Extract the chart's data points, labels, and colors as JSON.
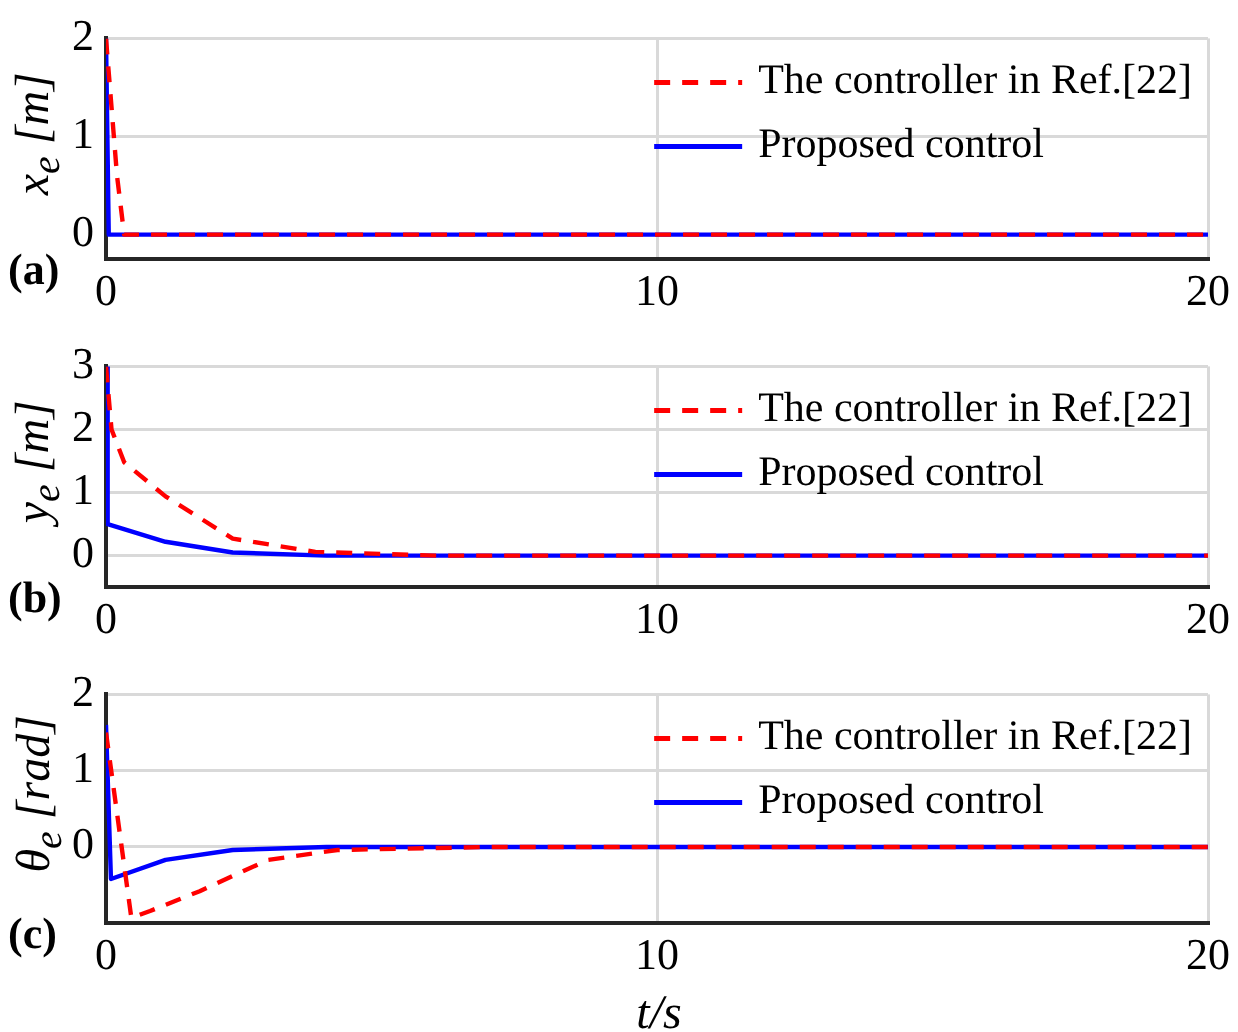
{
  "chart_data": [
    {
      "type": "line",
      "ylabel": "x$_{e}$ [m]",
      "annotations": [
        "(a)"
      ],
      "xlim": [
        0,
        20
      ],
      "xticks": [
        0,
        10,
        20
      ],
      "ylim": [
        -0.25,
        2
      ],
      "yticks": [
        0,
        1,
        2
      ],
      "grid": true,
      "legend": "top right",
      "marker": "none",
      "series": [
        {
          "name": "The controller in Ref.[22]",
          "color": "#ff0000",
          "line_style": "dashed",
          "x": [
            0,
            0.1,
            0.2,
            0.33,
            1,
            20
          ],
          "values": [
            2,
            1.3,
            0.6,
            0,
            0,
            0
          ]
        },
        {
          "name": "Proposed control",
          "color": "#0000ff",
          "line_style": "solid",
          "x": [
            0,
            0.05,
            20
          ],
          "values": [
            2,
            0,
            0
          ]
        }
      ]
    },
    {
      "type": "line",
      "ylabel": "y$_{e}$ [m]",
      "annotations": [
        "(b)"
      ],
      "xlim": [
        0,
        20
      ],
      "xticks": [
        0,
        10,
        20
      ],
      "ylim": [
        -0.5,
        3
      ],
      "yticks": [
        0,
        1,
        2,
        3
      ],
      "grid": true,
      "legend": "top right",
      "marker": "none",
      "series": [
        {
          "name": "The controller in Ref.[22]",
          "color": "#ff0000",
          "line_style": "dashed",
          "x": [
            0,
            0.1,
            0.33,
            1.08,
            2.3,
            3.8,
            6,
            20
          ],
          "values": [
            3,
            2,
            1.48,
            0.94,
            0.27,
            0.06,
            0,
            0
          ]
        },
        {
          "name": "Proposed control",
          "color": "#0000ff",
          "line_style": "solid",
          "x": [
            0,
            0.03,
            1.08,
            2.3,
            4,
            20
          ],
          "values": [
            3,
            0.5,
            0.22,
            0.05,
            0,
            0
          ]
        }
      ]
    },
    {
      "type": "line",
      "ylabel": "θ$_{e}$ [rad]",
      "xlabel": "t/s",
      "annotations": [
        "(c)"
      ],
      "xlim": [
        0,
        20
      ],
      "xticks": [
        0,
        10,
        20
      ],
      "ylim": [
        -1,
        2
      ],
      "yticks": [
        0,
        1,
        2
      ],
      "grid": true,
      "legend": "top right",
      "marker": "none",
      "series": [
        {
          "name": "The controller in Ref.[22]",
          "color": "#ff0000",
          "line_style": "dashed",
          "x": [
            0,
            0.46,
            0.8,
            1.7,
            2.94,
            4.2,
            7,
            20
          ],
          "values": [
            1.5,
            -0.93,
            -0.84,
            -0.58,
            -0.17,
            -0.04,
            0,
            0
          ]
        },
        {
          "name": "Proposed control",
          "color": "#0000ff",
          "line_style": "solid",
          "x": [
            0,
            0.09,
            1.08,
            2.3,
            4,
            20
          ],
          "values": [
            1.6,
            -0.42,
            -0.17,
            -0.04,
            0,
            0
          ]
        }
      ]
    }
  ]
}
